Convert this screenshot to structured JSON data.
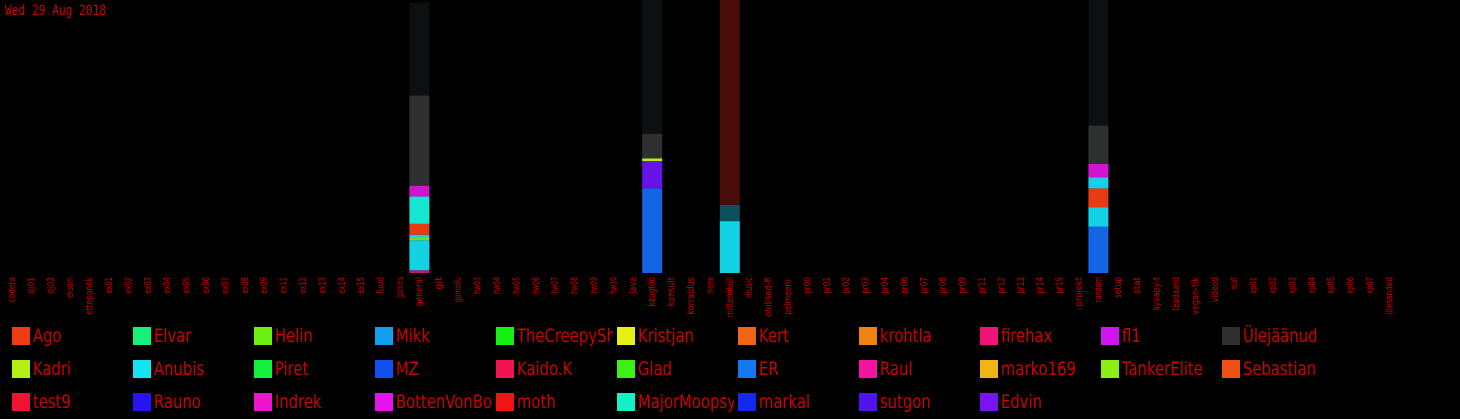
{
  "date_label": "Wed 29 Aug 2018",
  "colors": {
    "text": "#d00000",
    "background": "#000000"
  },
  "chart_data": {
    "type": "bar",
    "stacked": true,
    "title": "",
    "xlabel": "",
    "ylabel": "",
    "ylim": [
      0,
      100
    ],
    "grid": false,
    "legend": "bottom",
    "categories": [
      "codera",
      "dj01",
      "dj02",
      "eksam",
      "ettepanek",
      "ex01",
      "ex02",
      "ex03",
      "ex04",
      "ex05",
      "ex06",
      "ex07",
      "ex08",
      "ex09",
      "ex11",
      "ex12",
      "ex13",
      "ex14",
      "ex15",
      "fuud",
      "games",
      "general",
      "git",
      "gomoku",
      "hw03",
      "hw04",
      "hw05",
      "hw06",
      "hw07",
      "hw08",
      "hw09",
      "hw10",
      "java",
      "kaugtöö",
      "konsult",
      "korraldus",
      "meme",
      "mitteniiküll",
      "music",
      "olulised-fi",
      "pelmeeni-",
      "pr00",
      "pr01",
      "pr02",
      "pr03",
      "pr04",
      "pr06",
      "pr07",
      "pr08",
      "pr09",
      "pr11",
      "pr12",
      "pr13",
      "pr14",
      "pr15",
      "projekt",
      "random",
      "setup",
      "stat",
      "syvapy-t",
      "teadaand",
      "vegan-tik",
      "videod",
      "wat",
      "xp01",
      "xp02",
      "xp03",
      "xp04",
      "xp05",
      "xp06",
      "xp07",
      "ülesanded"
    ],
    "series": [
      {
        "name": "Ago",
        "color": "#f03c14"
      },
      {
        "name": "Elvar",
        "color": "#14f07a"
      },
      {
        "name": "Helin",
        "color": "#6cf014"
      },
      {
        "name": "Mikk",
        "color": "#14a0f0"
      },
      {
        "name": "TheCreepySh",
        "color": "#14f014"
      },
      {
        "name": "Kristjan",
        "color": "#e6f014"
      },
      {
        "name": "Kert",
        "color": "#f06414"
      },
      {
        "name": "krohtla",
        "color": "#f08214"
      },
      {
        "name": "firehax",
        "color": "#f01478"
      },
      {
        "name": "fl1",
        "color": "#d214f0"
      },
      {
        "name": "Ülejäänud",
        "color": "#303030"
      },
      {
        "name": "Kadri",
        "color": "#b4f014"
      },
      {
        "name": "Anubis",
        "color": "#14e6f0"
      },
      {
        "name": "Piret",
        "color": "#14f03c"
      },
      {
        "name": "MZ",
        "color": "#1450f0"
      },
      {
        "name": "Kaido.K",
        "color": "#f01450"
      },
      {
        "name": "Glad",
        "color": "#3cf014"
      },
      {
        "name": "ER",
        "color": "#1478f0"
      },
      {
        "name": "Raul",
        "color": "#f014a0"
      },
      {
        "name": "marko169",
        "color": "#f0b414"
      },
      {
        "name": "TankerElite",
        "color": "#8cf014"
      },
      {
        "name": "Sebastian",
        "color": "#f05014"
      },
      {
        "name": "test9",
        "color": "#f01432"
      },
      {
        "name": "Rauno",
        "color": "#2814f0"
      },
      {
        "name": "Indrek",
        "color": "#f014c8"
      },
      {
        "name": "BottenVonBot",
        "color": "#e614f0"
      },
      {
        "name": "moth",
        "color": "#f01414"
      },
      {
        "name": "MajorMoopsy",
        "color": "#14f0c8"
      },
      {
        "name": "markal",
        "color": "#1428f0"
      },
      {
        "name": "sutgon",
        "color": "#5014f0"
      },
      {
        "name": "Edvin",
        "color": "#7814f0"
      }
    ],
    "bars": [
      {
        "category": "general",
        "segments": [
          {
            "color": "#c81478",
            "value": 1
          },
          {
            "color": "#14d2e6",
            "value": 11
          },
          {
            "color": "#8cd214",
            "value": 1
          },
          {
            "color": "#14d2e6",
            "value": 1
          },
          {
            "color": "#e63c14",
            "value": 4
          },
          {
            "color": "#14e6d2",
            "value": 10
          },
          {
            "color": "#d214d2",
            "value": 4
          },
          {
            "color": "#2e3030",
            "value": 33
          },
          {
            "color": "#0c1010",
            "value": 34
          }
        ]
      },
      {
        "category": "kaugtöö",
        "segments": [
          {
            "color": "#1464e6",
            "value": 31
          },
          {
            "color": "#6414e6",
            "value": 10
          },
          {
            "color": "#b4f014",
            "value": 1
          },
          {
            "color": "#2e3030",
            "value": 9
          },
          {
            "color": "#0c1010",
            "value": 49
          }
        ]
      },
      {
        "category": "mitteniiküll",
        "segments": [
          {
            "color": "#14d2e6",
            "value": 19
          },
          {
            "color": "#0a5058",
            "value": 6
          },
          {
            "color": "#4a0c08",
            "value": 75
          }
        ]
      },
      {
        "category": "random",
        "segments": [
          {
            "color": "#1464e6",
            "value": 17
          },
          {
            "color": "#14d2e6",
            "value": 7
          },
          {
            "color": "#e63c14",
            "value": 7
          },
          {
            "color": "#14d2e6",
            "value": 4
          },
          {
            "color": "#d214d2",
            "value": 5
          },
          {
            "color": "#2e3030",
            "value": 14
          },
          {
            "color": "#0c1010",
            "value": 46
          }
        ]
      }
    ]
  }
}
